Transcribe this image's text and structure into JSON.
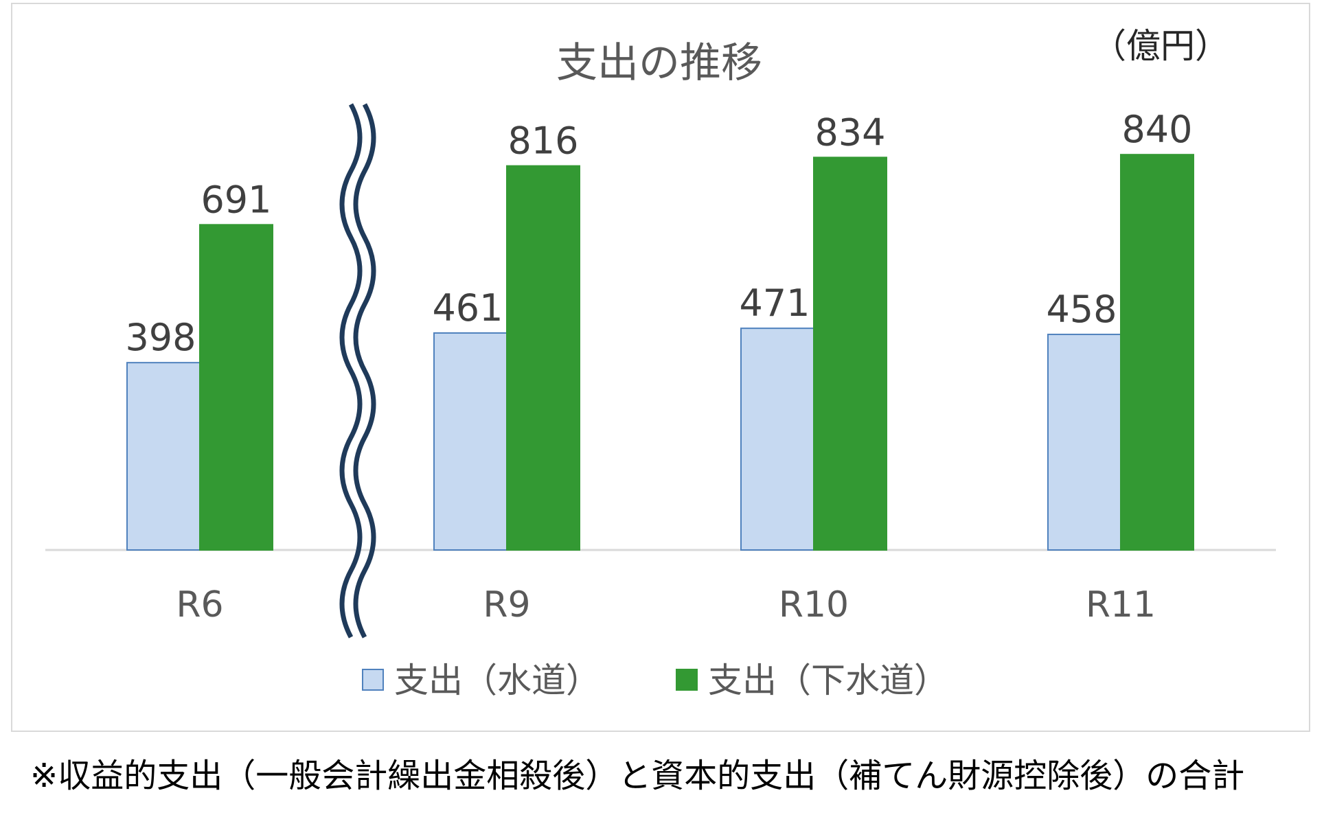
{
  "chart_data": {
    "type": "bar",
    "title": "支出の推移",
    "unit": "（億円）",
    "categories": [
      "R6",
      "R9",
      "R10",
      "R11"
    ],
    "axis_break_after": "R6",
    "series": [
      {
        "name": "支出（水道）",
        "values": [
          398,
          461,
          471,
          458
        ],
        "color": "#c6d9f1",
        "border": "#4f81bd"
      },
      {
        "name": "支出（下水道）",
        "values": [
          691,
          816,
          834,
          840
        ],
        "color": "#339933",
        "border": "#339933"
      }
    ],
    "ylim": [
      0,
      900
    ],
    "grid": false,
    "legend_position": "bottom"
  },
  "footnote": "※収益的支出（一般会計繰出金相殺後）と資本的支出（補てん財源控除後）の合計"
}
